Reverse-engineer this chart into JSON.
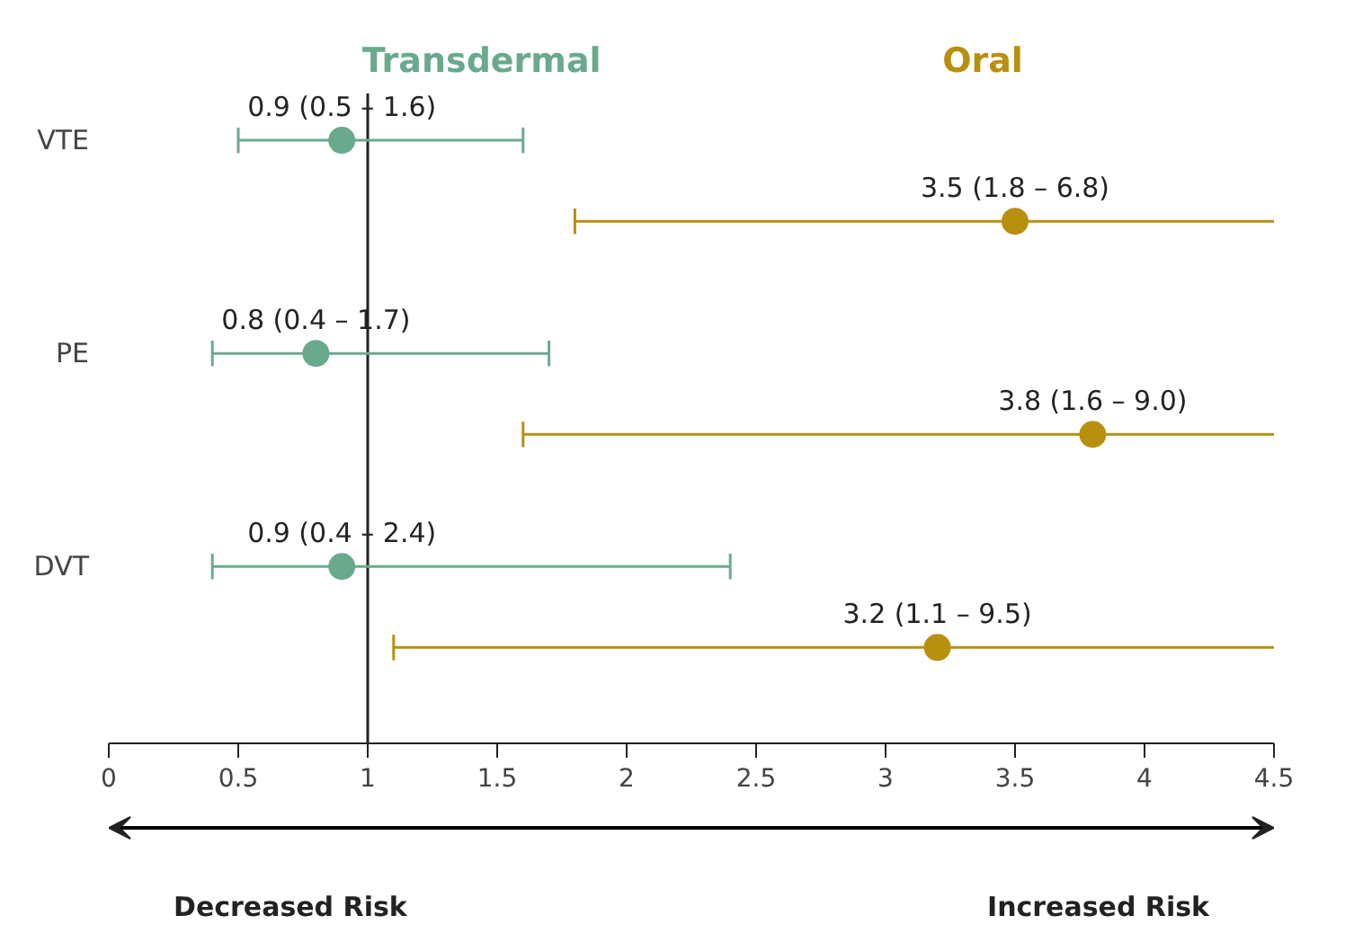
{
  "chart_data": {
    "type": "scatter",
    "orientation": "horizontal",
    "categories": [
      "VTE",
      "PE",
      "DVT"
    ],
    "series": [
      {
        "name": "Transdermal",
        "color": "#6aaa8c",
        "values": [
          0.9,
          0.8,
          0.9
        ],
        "errors": [
          [
            0.5,
            1.6
          ],
          [
            0.4,
            1.7
          ],
          [
            0.4,
            2.4
          ]
        ],
        "value_labels": [
          "0.9 (0.5 – 1.6)",
          "0.8 (0.4 – 1.7)",
          "0.9 (0.4 – 2.4)"
        ]
      },
      {
        "name": "Oral",
        "color": "#b8900f",
        "values": [
          3.5,
          3.8,
          3.2
        ],
        "errors": [
          [
            1.8,
            6.8
          ],
          [
            1.6,
            9.0
          ],
          [
            1.1,
            9.5
          ]
        ],
        "value_labels": [
          "3.5 (1.8 – 6.8)",
          "3.8 (1.6 – 9.0)",
          "3.2 (1.1 – 9.5)"
        ]
      }
    ],
    "xlim": [
      0,
      4.5
    ],
    "xticks": [
      0,
      0.5,
      1,
      1.5,
      2,
      2.5,
      3,
      3.5,
      4,
      4.5
    ],
    "ref_lines": [
      {
        "axis": "x",
        "value": 1,
        "color": "#222222"
      }
    ],
    "marker": "circle",
    "grid": false,
    "legend": "top",
    "annotations": [
      "Decreased Risk",
      "Increased Risk"
    ]
  }
}
